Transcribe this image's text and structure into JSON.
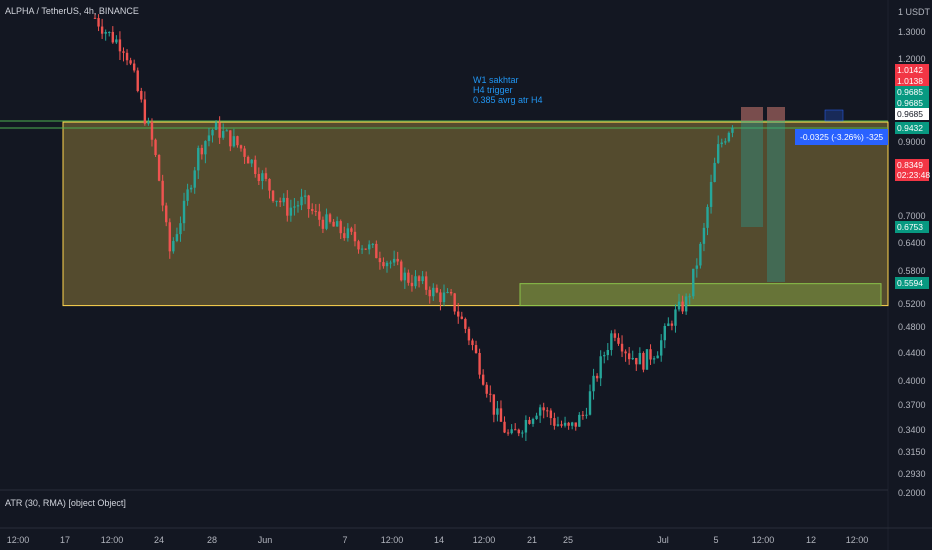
{
  "chart": {
    "symbol_title": "ALPHA / TetherUS, 4h, BINANCE",
    "annotation": [
      "W1 sakhtar",
      "H4 trigger",
      "0.385 avrg atr H4"
    ],
    "atr_label": "ATR (30, RMA) [object Object]",
    "currency": "1 USDT",
    "position_label": "-0.0325 (-3.26%) -325",
    "current_price": "0.8349",
    "countdown": "02:23:48",
    "colors": {
      "background": "#131722",
      "up": "#26a69a",
      "down": "#ef5350",
      "zone_yellow": "#ffd54f",
      "zone_green": "#8bc34a",
      "grid": "#1e222d"
    }
  },
  "y_axis": {
    "ticks": [
      "1.3000",
      "1.2000",
      "0.9000",
      "0.7000",
      "0.6400",
      "0.5800",
      "0.5200",
      "0.4800",
      "0.4400",
      "0.4000",
      "0.3700",
      "0.3400",
      "0.3150",
      "0.2930"
    ],
    "atr_tick": "0.2000"
  },
  "x_axis": {
    "ticks": [
      "12:00",
      "17",
      "12:00",
      "24",
      "28",
      "Jun",
      "7",
      "12:00",
      "14",
      "12:00",
      "21",
      "25",
      "Jul",
      "5",
      "12:00",
      "12",
      "12:00"
    ]
  },
  "price_tags": [
    {
      "label": "1.0142",
      "color": "red"
    },
    {
      "label": "1.0138",
      "color": "red"
    },
    {
      "label": "0.9685",
      "color": "green"
    },
    {
      "label": "0.9685",
      "color": "green"
    },
    {
      "label": "0.9685",
      "color": "white"
    },
    {
      "label": "0.9432",
      "color": "green"
    },
    {
      "label": "0.6753",
      "color": "green"
    },
    {
      "label": "0.5594",
      "color": "green"
    }
  ],
  "chart_data": {
    "type": "candlestick",
    "title": "ALPHA / TetherUS, 4h, BINANCE",
    "ylim": [
      0.29,
      1.45
    ],
    "y_scale": "log",
    "grid": false,
    "x_ticks": [
      "12:00",
      "17",
      "12:00",
      "24",
      "28",
      "Jun",
      "7",
      "12:00",
      "14",
      "12:00",
      "21",
      "25",
      "Jul",
      "5",
      "12:00",
      "12",
      "12:00"
    ],
    "path_points": [
      [
        0,
        1.38
      ],
      [
        1,
        1.3
      ],
      [
        2,
        1.25
      ],
      [
        3,
        1.05
      ],
      [
        4,
        0.88
      ],
      [
        5,
        0.62
      ],
      [
        6,
        0.72
      ],
      [
        7,
        0.88
      ],
      [
        8,
        0.95
      ],
      [
        9,
        0.92
      ],
      [
        10,
        0.88
      ],
      [
        11,
        0.82
      ],
      [
        12,
        0.76
      ],
      [
        13,
        0.72
      ],
      [
        14,
        0.74
      ],
      [
        15,
        0.7
      ],
      [
        16,
        0.68
      ],
      [
        17,
        0.66
      ],
      [
        18,
        0.64
      ],
      [
        19,
        0.62
      ],
      [
        20,
        0.6
      ],
      [
        21,
        0.57
      ],
      [
        22,
        0.56
      ],
      [
        23,
        0.54
      ],
      [
        24,
        0.53
      ],
      [
        25,
        0.48
      ],
      [
        26,
        0.42
      ],
      [
        27,
        0.36
      ],
      [
        28,
        0.33
      ],
      [
        29,
        0.35
      ],
      [
        30,
        0.37
      ],
      [
        31,
        0.35
      ],
      [
        32,
        0.34
      ],
      [
        33,
        0.36
      ],
      [
        34,
        0.42
      ],
      [
        35,
        0.48
      ],
      [
        36,
        0.44
      ],
      [
        37,
        0.43
      ],
      [
        38,
        0.45
      ],
      [
        39,
        0.5
      ],
      [
        40,
        0.53
      ],
      [
        41,
        0.65
      ],
      [
        42,
        0.88
      ],
      [
        43,
        0.97
      ]
    ],
    "zones": [
      {
        "name": "yellow-zone",
        "top": 0.9685,
        "bottom": 0.5192
      },
      {
        "name": "green-zone",
        "top": 0.5594,
        "bottom": 0.5192
      }
    ]
  }
}
